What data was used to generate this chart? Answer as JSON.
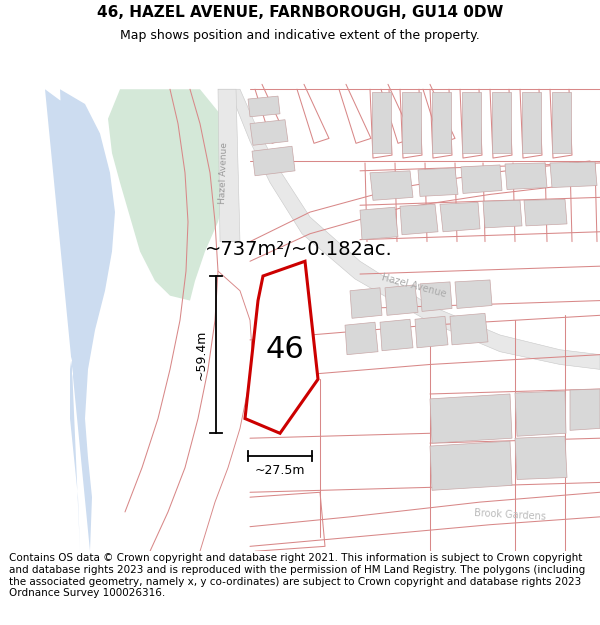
{
  "title": "46, HAZEL AVENUE, FARNBOROUGH, GU14 0DW",
  "subtitle": "Map shows position and indicative extent of the property.",
  "area_text": "~737m²/~0.182ac.",
  "label_46": "46",
  "dim_width": "~27.5m",
  "dim_height": "~59.4m",
  "footer": "Contains OS data © Crown copyright and database right 2021. This information is subject to Crown copyright and database rights 2023 and is reproduced with the permission of HM Land Registry. The polygons (including the associated geometry, namely x, y co-ordinates) are subject to Crown copyright and database rights 2023 Ordnance Survey 100026316.",
  "bg_map_color": "#eef2ee",
  "green_area_color": "#d4e8d8",
  "water_color": "#ccdcf0",
  "road_fill_color": "#e8e8e8",
  "road_edge_color": "#c8c8c8",
  "plot_outline_color": "#cc0000",
  "building_fill_color": "#d8d8d8",
  "building_edge_color": "#c8a8a8",
  "cadastral_color": "#d88888",
  "title_fontsize": 11,
  "subtitle_fontsize": 9,
  "footer_fontsize": 7.5
}
